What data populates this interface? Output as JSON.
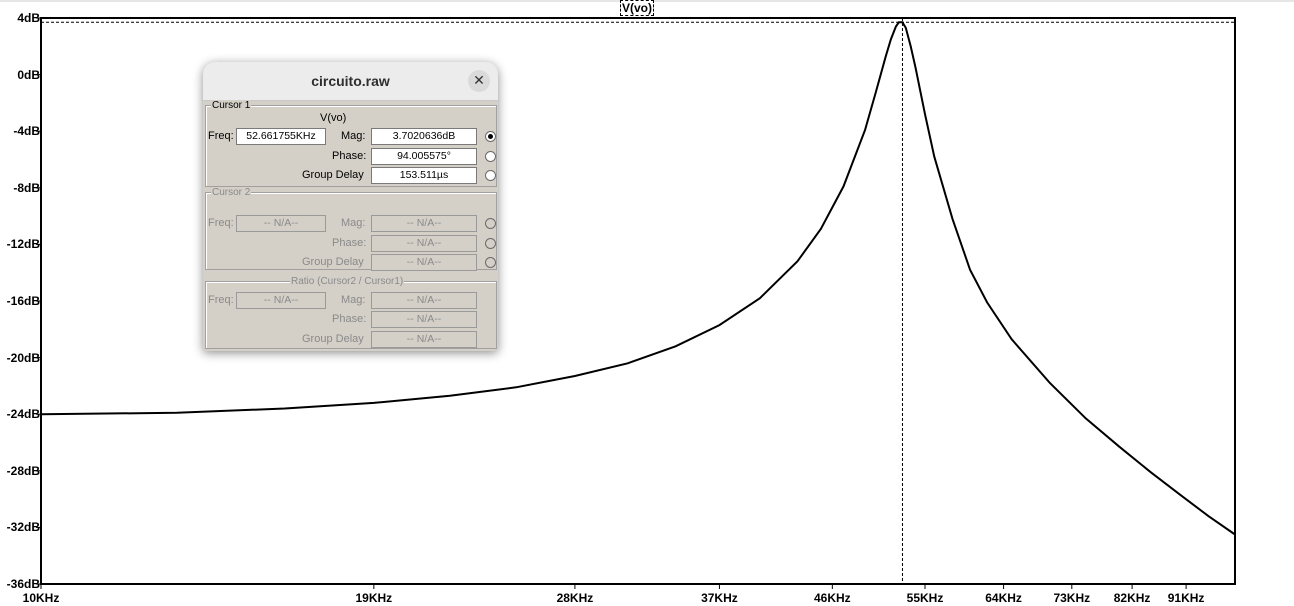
{
  "chart_data": {
    "type": "line",
    "trace": "V(vo)",
    "xscale": "log",
    "xlim_hz": [
      10000,
      100000
    ],
    "ylim_db": [
      -36,
      4
    ],
    "y_ticks": [
      "4dB",
      "0dB",
      "-4dB",
      "-8dB",
      "-12dB",
      "-16dB",
      "-20dB",
      "-24dB",
      "-28dB",
      "-32dB",
      "-36dB"
    ],
    "y_tick_values": [
      4,
      0,
      -4,
      -8,
      -12,
      -16,
      -20,
      -24,
      -28,
      -32,
      -36
    ],
    "x_ticks": [
      "10KHz",
      "19KHz",
      "28KHz",
      "37KHz",
      "46KHz",
      "55KHz",
      "64KHz",
      "73KHz",
      "82KHz",
      "91KHz"
    ],
    "x_tick_values": [
      10000,
      19000,
      28000,
      37000,
      46000,
      55000,
      64000,
      73000,
      82000,
      91000
    ],
    "series": [
      {
        "x": [
          10000,
          13000,
          16000,
          19000,
          22000,
          25000,
          28000,
          31000,
          34000,
          37000,
          40000,
          43000,
          45000,
          47000,
          49000,
          50000,
          51000,
          51500,
          52000,
          52300,
          52660,
          53000,
          53500,
          54000,
          55000,
          56000,
          58000,
          60000,
          62000,
          65000,
          70000,
          75000,
          80000,
          85000,
          90000,
          95000,
          100000
        ],
        "y": [
          -24.0,
          -23.9,
          -23.6,
          -23.2,
          -22.7,
          -22.1,
          -21.3,
          -20.4,
          -19.2,
          -17.7,
          -15.8,
          -13.2,
          -10.9,
          -7.9,
          -3.9,
          -1.3,
          1.3,
          2.5,
          3.4,
          3.7,
          3.7,
          3.3,
          2.0,
          0.5,
          -2.8,
          -5.8,
          -10.2,
          -13.8,
          -16.1,
          -18.7,
          -21.8,
          -24.3,
          -26.3,
          -28.1,
          -29.7,
          -31.2,
          -32.5
        ]
      }
    ],
    "cursor_x_hz": 52661.755,
    "cursor_y_db": 3.7020636
  },
  "dialog": {
    "title": "circuito.raw",
    "close": "✕",
    "cursor1": {
      "legend": "Cursor 1",
      "trace": "V(vo)",
      "freq_label": "Freq:",
      "freq": "52.661755KHz",
      "mag_label": "Mag:",
      "mag": "3.7020636dB",
      "phase_label": "Phase:",
      "phase": "94.005575°",
      "gd_label": "Group Delay",
      "gd": "153.511µs"
    },
    "cursor2": {
      "legend": "Cursor 2",
      "freq_label": "Freq:",
      "freq": "-- N/A--",
      "mag_label": "Mag:",
      "mag": "-- N/A--",
      "phase_label": "Phase:",
      "phase": "-- N/A--",
      "gd_label": "Group Delay",
      "gd": "-- N/A--"
    },
    "ratio": {
      "legend": "Ratio (Cursor2 / Cursor1)",
      "freq_label": "Freq:",
      "freq": "-- N/A--",
      "mag_label": "Mag:",
      "mag": "-- N/A--",
      "phase_label": "Phase:",
      "phase": "-- N/A--",
      "gd_label": "Group Delay",
      "gd": "-- N/A--"
    }
  }
}
